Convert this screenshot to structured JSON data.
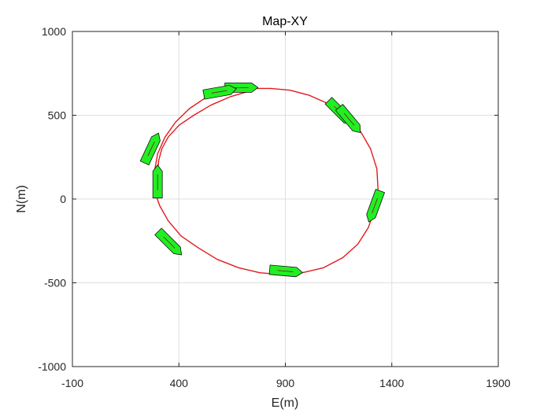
{
  "chart_data": {
    "type": "line",
    "title": "Map-XY",
    "xlabel": "E(m)",
    "ylabel": "N(m)",
    "xlim": [
      -100,
      1900
    ],
    "ylim": [
      -1000,
      1000
    ],
    "xticks": [
      "-100",
      "400",
      "900",
      "1400",
      "1900"
    ],
    "yticks": [
      "1000",
      "500",
      "0",
      "-500",
      "-1000"
    ],
    "xtick_values": [
      -100,
      400,
      900,
      1400,
      1900
    ],
    "ytick_values": [
      1000,
      500,
      0,
      -500,
      -1000
    ],
    "grid": true,
    "legend": "none",
    "series": [
      {
        "color": "#e31a1c",
        "x": [
          300,
          300,
          305,
          320,
          350,
          400,
          470,
          550,
          640,
          720,
          760,
          830,
          920,
          1010,
          1100,
          1180,
          1250,
          1300,
          1330,
          1335,
          1320,
          1290,
          1240,
          1170,
          1080,
          980,
          880,
          780,
          680,
          580,
          490,
          410,
          350,
          310,
          285,
          285,
          300,
          335,
          385,
          450,
          520,
          600,
          670,
          720,
          760
        ],
        "y": [
          100,
          160,
          230,
          300,
          370,
          440,
          500,
          560,
          610,
          640,
          660,
          660,
          650,
          620,
          570,
          500,
          410,
          300,
          180,
          60,
          -60,
          -170,
          -270,
          -350,
          -410,
          -440,
          -450,
          -440,
          -410,
          -360,
          -290,
          -220,
          -130,
          -40,
          50,
          160,
          270,
          370,
          460,
          540,
          600,
          640,
          660,
          665,
          665
        ]
      }
    ],
    "ships": [
      {
        "x": 690,
        "y": 665,
        "heading_deg": 90
      },
      {
        "x": 590,
        "y": 640,
        "heading_deg": 80
      },
      {
        "x": 1155,
        "y": 520,
        "heading_deg": 135
      },
      {
        "x": 1200,
        "y": 475,
        "heading_deg": 140
      },
      {
        "x": 270,
        "y": 300,
        "heading_deg": 25
      },
      {
        "x": 300,
        "y": 100,
        "heading_deg": 0
      },
      {
        "x": 1320,
        "y": -40,
        "heading_deg": 200
      },
      {
        "x": 355,
        "y": -260,
        "heading_deg": 135
      },
      {
        "x": 900,
        "y": -430,
        "heading_deg": 95
      }
    ],
    "ship_fill": "#22ee22",
    "ship_stroke": "#111111"
  }
}
